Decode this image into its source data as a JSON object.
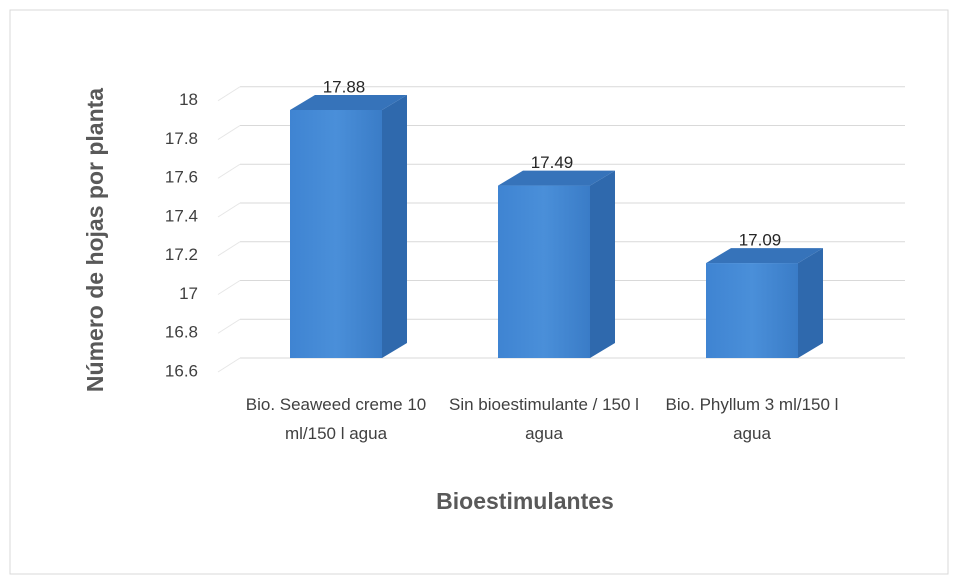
{
  "chart_data": {
    "type": "bar3d",
    "y_label": "Número de hojas por planta",
    "x_label": "Bioestimulantes",
    "categories": [
      "Bio. Seaweed creme 10 ml/150 l agua",
      "Sin bioestimulante / 150 l agua",
      "Bio. Phyllum 3 ml/150 l agua"
    ],
    "values": [
      17.88,
      17.49,
      17.09
    ],
    "color": "#4a8fd9",
    "ylim": [
      16.6,
      18.2
    ],
    "yticks": [
      16.6,
      16.8,
      17,
      17.2,
      17.4,
      17.6,
      17.8,
      18
    ],
    "grid": true
  }
}
